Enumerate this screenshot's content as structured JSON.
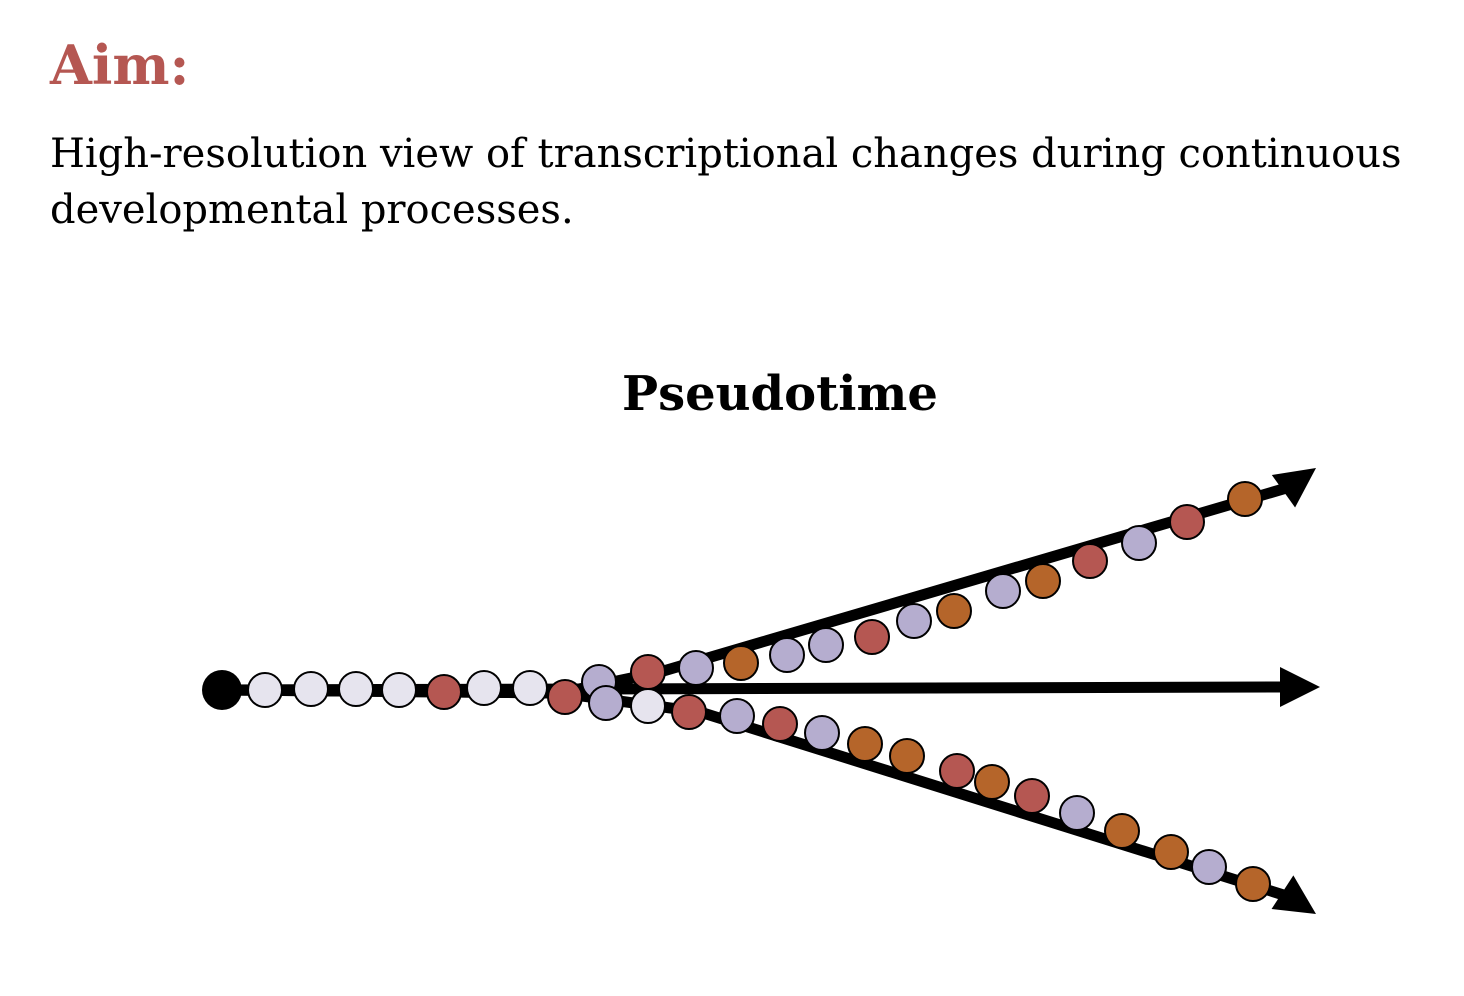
{
  "aim": {
    "heading": "Aim:",
    "text": "High-resolution view of transcriptional changes during continuous developmental processes."
  },
  "diagram": {
    "title": "Pseudotime",
    "colors": {
      "trajectory": "#000000",
      "cell_light": "#e6e4ee",
      "cell_lavender": "#b5adcf",
      "cell_red": "#b55752",
      "cell_orange": "#b5652a"
    },
    "branches": [
      {
        "name": "upper",
        "cells": [
          "cell_lavender",
          "cell_red",
          "cell_lavender",
          "cell_orange",
          "cell_lavender",
          "cell_lavender",
          "cell_red",
          "cell_lavender",
          "cell_orange",
          "cell_lavender",
          "cell_orange",
          "cell_red",
          "cell_lavender",
          "cell_red",
          "cell_orange"
        ]
      },
      {
        "name": "middle",
        "cells": []
      },
      {
        "name": "lower",
        "cells": [
          "cell_lavender",
          "cell_light",
          "cell_red",
          "cell_lavender",
          "cell_red",
          "cell_lavender",
          "cell_orange",
          "cell_orange",
          "cell_red",
          "cell_orange",
          "cell_red",
          "cell_lavender",
          "cell_orange",
          "cell_orange",
          "cell_lavender",
          "cell_orange"
        ]
      }
    ],
    "stem_cells": [
      "cell_light",
      "cell_light",
      "cell_light",
      "cell_light",
      "cell_red",
      "cell_light",
      "cell_light",
      "cell_red"
    ]
  }
}
